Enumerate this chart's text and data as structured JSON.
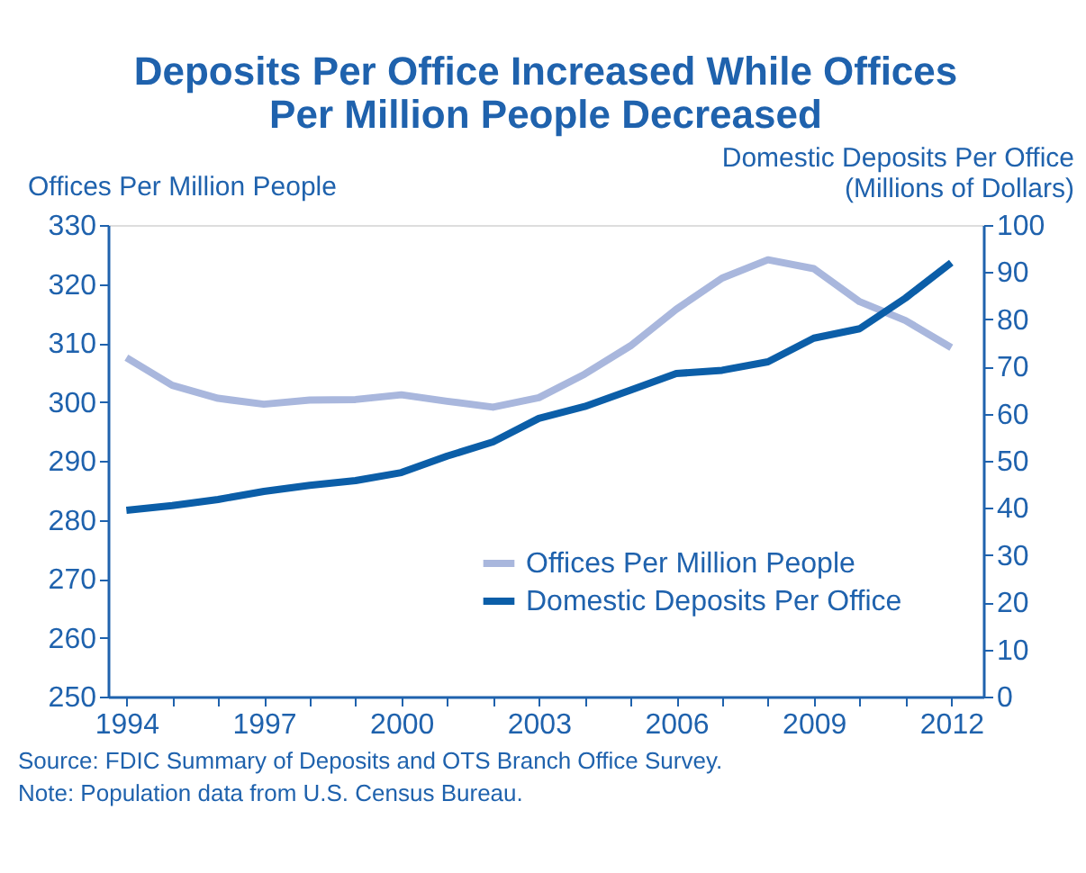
{
  "chart_data": {
    "type": "line",
    "title": "Deposits Per Office Increased While Offices\nPer Million People Decreased",
    "ylabel": "Offices Per Million People",
    "y2label": "Domestic Deposits Per Office\n(Millions of Dollars)",
    "x": [
      1994,
      1995,
      1996,
      1997,
      1998,
      1999,
      2000,
      2001,
      2002,
      2003,
      2004,
      2005,
      2006,
      2007,
      2008,
      2009,
      2010,
      2011,
      2012
    ],
    "series": [
      {
        "name": "Offices Per Million People",
        "color": "#a9b7dd",
        "values": [
          307.5,
          302.8,
          300.6,
          299.6,
          300.3,
          300.4,
          301.2,
          300.1,
          299.1,
          300.7,
          304.7,
          309.5,
          315.7,
          321,
          324.1,
          322.6,
          317,
          313.8,
          309.2
        ]
      },
      {
        "name": "Domestic Deposits Per Office",
        "color": "#0b5ea8",
        "axis": "y2",
        "values": [
          39.5,
          40.5,
          41.8,
          43.5,
          44.8,
          45.8,
          47.5,
          51,
          54,
          59,
          61.5,
          65,
          68.5,
          69.2,
          71,
          76,
          78,
          84.5,
          92
        ]
      }
    ],
    "xlim": [
      1993.6,
      2012.7
    ],
    "xticks": [
      1994,
      {
        "value": 1995,
        "label": null
      },
      {
        "value": 1996,
        "label": null
      },
      1997,
      {
        "value": 1998,
        "label": null
      },
      {
        "value": 1999,
        "label": null
      },
      2000,
      {
        "value": 2001,
        "label": null
      },
      {
        "value": 2002,
        "label": null
      },
      2003,
      {
        "value": 2004,
        "label": null
      },
      {
        "value": 2005,
        "label": null
      },
      2006,
      {
        "value": 2007,
        "label": null
      },
      {
        "value": 2008,
        "label": null
      },
      2009,
      {
        "value": 2010,
        "label": null
      },
      {
        "value": 2011,
        "label": null
      },
      2012
    ],
    "ylim": [
      250,
      330
    ],
    "yticks": [
      250,
      260,
      270,
      280,
      290,
      300,
      310,
      320,
      330
    ],
    "y2lim": [
      0,
      100
    ],
    "y2ticks": [
      0,
      10,
      20,
      30,
      40,
      50,
      60,
      70,
      80,
      90,
      100
    ],
    "grid": false,
    "legend": "bottom right",
    "marker": "none",
    "line_style": "solid",
    "annotations": [
      "Source: FDIC Summary of Deposits and OTS Branch Office Survey.",
      "Note: Population data from U.S. Census Bureau."
    ]
  }
}
